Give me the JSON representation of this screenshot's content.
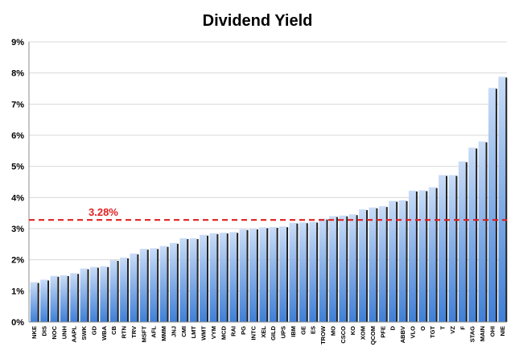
{
  "chart_data": {
    "type": "bar",
    "title": "Dividend Yield",
    "xlabel": "",
    "ylabel": "",
    "ylim": [
      0,
      9
    ],
    "yticks": [
      "0%",
      "1%",
      "2%",
      "3%",
      "4%",
      "5%",
      "6%",
      "7%",
      "8%",
      "9%"
    ],
    "grid": "horizontal",
    "legend": "none",
    "categories": [
      "NKE",
      "DIS",
      "NOC",
      "UNH",
      "AAPL",
      "SWK",
      "GD",
      "WBA",
      "CB",
      "RTN",
      "TRV",
      "MSFT",
      "AFL",
      "MMM",
      "JNJ",
      "CMI",
      "LMT",
      "WMT",
      "VYM",
      "MCD",
      "RAI",
      "PG",
      "INTC",
      "XEL",
      "GILD",
      "UPS",
      "IBM",
      "GE",
      "ES",
      "TROW",
      "MO",
      "CSCO",
      "KO",
      "XOM",
      "QCOM",
      "PFE",
      "D",
      "ABBV",
      "VLO",
      "O",
      "TGT",
      "T",
      "VZ",
      "F",
      "STAG",
      "MAIN",
      "OHI",
      "NIE"
    ],
    "values": [
      1.28,
      1.36,
      1.48,
      1.5,
      1.57,
      1.72,
      1.77,
      1.79,
      1.99,
      2.07,
      2.2,
      2.35,
      2.37,
      2.44,
      2.54,
      2.69,
      2.69,
      2.8,
      2.85,
      2.87,
      2.89,
      2.98,
      3.0,
      3.04,
      3.05,
      3.07,
      3.19,
      3.2,
      3.22,
      3.32,
      3.4,
      3.42,
      3.46,
      3.62,
      3.68,
      3.72,
      3.89,
      3.91,
      4.22,
      4.23,
      4.33,
      4.72,
      4.72,
      5.16,
      5.6,
      5.8,
      7.52,
      7.88
    ],
    "reference_line": {
      "value": 3.28,
      "label": "3.28%",
      "style": "dashed"
    },
    "colors": {
      "bar_light": "#c9dcf7",
      "bar_dark": "#3f7fd6",
      "bar_shadow": "#222222",
      "reference": "#e02020",
      "grid": "#d9d9d9",
      "axis": "#8c8c8c"
    }
  }
}
